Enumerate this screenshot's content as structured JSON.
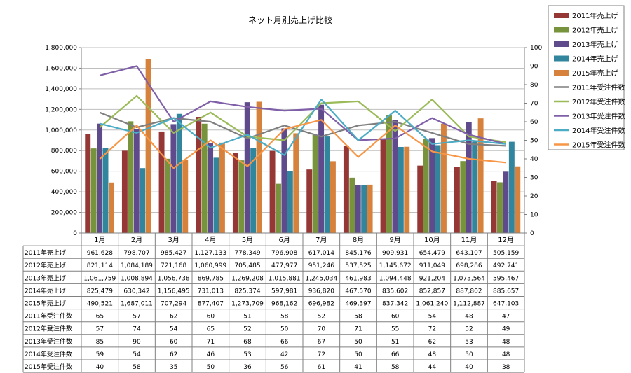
{
  "chart_data": {
    "type": "bar",
    "title": "ネット月別売上げ比較",
    "xlabel": "",
    "ylabel": "",
    "ylim": [
      0,
      1800000
    ],
    "y2lim": [
      0,
      100
    ],
    "y_ticks": [
      "0",
      "200,000",
      "400,000",
      "600,000",
      "800,000",
      "1,000,000",
      "1,200,000",
      "1,400,000",
      "1,600,000",
      "1,800,000"
    ],
    "y2_ticks": [
      "0",
      "10",
      "20",
      "30",
      "40",
      "50",
      "60",
      "70",
      "80",
      "90",
      "100"
    ],
    "grid": true,
    "legend_position": "right",
    "categories": [
      "1月",
      "2月",
      "3月",
      "4月",
      "5月",
      "6月",
      "7月",
      "8月",
      "9月",
      "10月",
      "11月",
      "12月"
    ],
    "series": [
      {
        "name": "2011年売上げ",
        "kind": "bar",
        "axis": "primary",
        "color": "#953735",
        "values": [
          961628,
          798707,
          985427,
          1127133,
          778349,
          796908,
          617014,
          845176,
          909931,
          654479,
          643107,
          505159
        ],
        "labels": [
          "961,628",
          "798,707",
          "985,427",
          "1,127,133",
          "778,349",
          "796,908",
          "617,014",
          "845,176",
          "909,931",
          "654,479",
          "643,107",
          "505,159"
        ]
      },
      {
        "name": "2012年売上げ",
        "kind": "bar",
        "axis": "primary",
        "color": "#77933c",
        "values": [
          821114,
          1084189,
          721168,
          1060999,
          705485,
          477977,
          951246,
          537525,
          1145672,
          911049,
          698286,
          492741
        ],
        "labels": [
          "821,114",
          "1,084,189",
          "721,168",
          "1,060,999",
          "705,485",
          "477,977",
          "951,246",
          "537,525",
          "1,145,672",
          "911,049",
          "698,286",
          "492,741"
        ]
      },
      {
        "name": "2013年売上げ",
        "kind": "bar",
        "axis": "primary",
        "color": "#5f4b8b",
        "values": [
          1061759,
          1008894,
          1056738,
          869785,
          1269208,
          1015881,
          1245034,
          461983,
          1094448,
          921204,
          1073564,
          595467
        ],
        "labels": [
          "1,061,759",
          "1,008,894",
          "1,056,738",
          "869,785",
          "1,269,208",
          "1,015,881",
          "1,245,034",
          "461,983",
          "1,094,448",
          "921,204",
          "1,073,564",
          "595,467"
        ]
      },
      {
        "name": "2014年売上げ",
        "kind": "bar",
        "axis": "primary",
        "color": "#31859c",
        "values": [
          825479,
          630342,
          1156495,
          731013,
          825374,
          597981,
          936820,
          467570,
          835602,
          852857,
          887802,
          885657
        ],
        "labels": [
          "825,479",
          "630,342",
          "1,156,495",
          "731,013",
          "825,374",
          "597,981",
          "936,820",
          "467,570",
          "835,602",
          "852,857",
          "887,802",
          "885,657"
        ]
      },
      {
        "name": "2015年売上げ",
        "kind": "bar",
        "axis": "primary",
        "color": "#d7823c",
        "values": [
          490521,
          1687011,
          707294,
          877407,
          1273709,
          968162,
          696982,
          469397,
          837342,
          1061240,
          1112887,
          647103
        ],
        "labels": [
          "490,521",
          "1,687,011",
          "707,294",
          "877,407",
          "1,273,709",
          "968,162",
          "696,982",
          "469,397",
          "837,342",
          "1,061,240",
          "1,112,887",
          "647,103"
        ]
      },
      {
        "name": "2011年受注件数",
        "kind": "line",
        "axis": "secondary",
        "color": "#7f7f7f",
        "values": [
          65,
          57,
          62,
          60,
          51,
          58,
          52,
          58,
          60,
          54,
          48,
          47
        ],
        "labels": [
          "65",
          "57",
          "62",
          "60",
          "51",
          "58",
          "52",
          "58",
          "60",
          "54",
          "48",
          "47"
        ]
      },
      {
        "name": "2012年受注件数",
        "kind": "line",
        "axis": "secondary",
        "color": "#9bbb59",
        "values": [
          57,
          74,
          54,
          65,
          52,
          50,
          70,
          71,
          55,
          72,
          52,
          49
        ],
        "labels": [
          "57",
          "74",
          "54",
          "65",
          "52",
          "50",
          "70",
          "71",
          "55",
          "72",
          "52",
          "49"
        ]
      },
      {
        "name": "2013年受注件数",
        "kind": "line",
        "axis": "secondary",
        "color": "#7f5fa8",
        "values": [
          85,
          90,
          60,
          71,
          68,
          66,
          67,
          50,
          51,
          62,
          53,
          48
        ],
        "labels": [
          "85",
          "90",
          "60",
          "71",
          "68",
          "66",
          "67",
          "50",
          "51",
          "62",
          "53",
          "48"
        ]
      },
      {
        "name": "2014年受注件数",
        "kind": "line",
        "axis": "secondary",
        "color": "#4bacc6",
        "values": [
          59,
          54,
          62,
          46,
          53,
          42,
          72,
          50,
          66,
          48,
          50,
          48
        ],
        "labels": [
          "59",
          "54",
          "62",
          "46",
          "53",
          "42",
          "72",
          "50",
          "66",
          "48",
          "50",
          "48"
        ]
      },
      {
        "name": "2015年受注件数",
        "kind": "line",
        "axis": "secondary",
        "color": "#f79646",
        "values": [
          40,
          58,
          35,
          50,
          36,
          56,
          61,
          41,
          58,
          44,
          40,
          38
        ],
        "labels": [
          "40",
          "58",
          "35",
          "50",
          "36",
          "56",
          "61",
          "41",
          "58",
          "44",
          "40",
          "38"
        ]
      }
    ]
  }
}
